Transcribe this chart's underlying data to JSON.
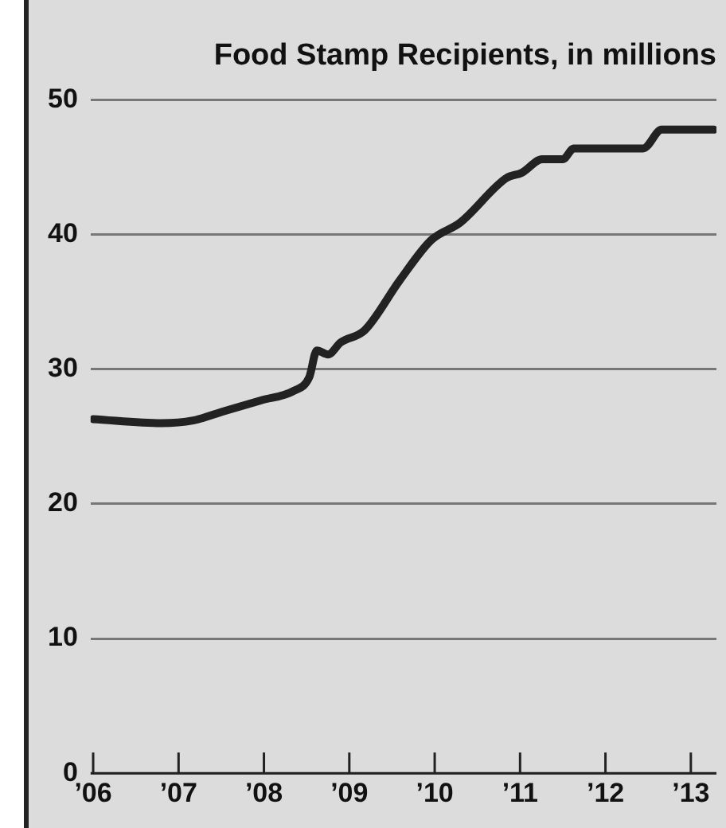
{
  "chart_data": {
    "type": "line",
    "title": "Food Stamp Recipients, in millions",
    "x": [
      2006.0,
      2006.8,
      2007.17,
      2007.54,
      2007.97,
      2008.35,
      2008.53,
      2008.62,
      2008.75,
      2008.9,
      2009.18,
      2009.59,
      2009.96,
      2010.3,
      2010.84,
      2011.02,
      2011.26,
      2011.5,
      2011.63,
      2012.44,
      2012.66,
      2013.27
    ],
    "series": [
      {
        "color": "#222222",
        "values": [
          26.3,
          26.0,
          26.2,
          26.9,
          27.7,
          28.4,
          29.4,
          31.4,
          31.1,
          32.0,
          32.9,
          36.6,
          39.6,
          40.9,
          44.2,
          44.6,
          45.6,
          45.6,
          46.4,
          46.4,
          47.8,
          47.8
        ]
      }
    ],
    "xlim": [
      2005.97,
      2013.3
    ],
    "xticks": [
      {
        "value": 2006,
        "label": "’06"
      },
      {
        "value": 2007,
        "label": "’07"
      },
      {
        "value": 2008,
        "label": "’08"
      },
      {
        "value": 2009,
        "label": "’09"
      },
      {
        "value": 2010,
        "label": "’10"
      },
      {
        "value": 2011,
        "label": "’11"
      },
      {
        "value": 2012,
        "label": "’12"
      },
      {
        "value": 2013,
        "label": "’13"
      }
    ],
    "ylim": [
      0,
      50
    ],
    "yticks": [
      0,
      10,
      20,
      30,
      40,
      50
    ],
    "grid": "y",
    "legend": false,
    "marker": "none",
    "line_style": "solid"
  }
}
